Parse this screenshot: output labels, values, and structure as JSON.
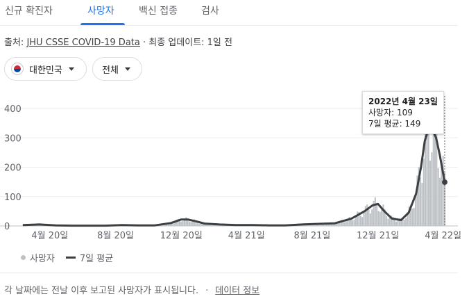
{
  "tabs": [
    "신규 확진자",
    "사망자",
    "백신 접종",
    "검사"
  ],
  "active_tab": "사망자",
  "source": {
    "prefix": "출처: ",
    "link": "JHU CSSE COVID-19 Data",
    "suffix": " · 최종 업데이트: 1일 전"
  },
  "filters": {
    "region": "대한민국",
    "range": "전체"
  },
  "tooltip": {
    "date": "2022년 4월 23일",
    "deaths": "사망자: 109",
    "avg": "7일 평균: 149"
  },
  "legend": {
    "bars": "사망자",
    "line": "7일 평균"
  },
  "footer": {
    "note": "각 날짜에는 전날 이후 보고된 사망자가 표시됩니다.",
    "sep": "·",
    "link": "데이터 정보"
  },
  "colors": {
    "accent": "#1a73e8",
    "bars": "#bdc1c6",
    "line": "#3c4043"
  },
  "chart_data": {
    "type": "area",
    "y_ticks": [
      0,
      100,
      200,
      300,
      400
    ],
    "ylim": [
      0,
      400
    ],
    "x_ticks": [
      "4월 20일",
      "8월 20일",
      "12월 20일",
      "4월 21일",
      "8월 21일",
      "12월 21일",
      "4월 22일"
    ],
    "grid": true,
    "series": [
      {
        "name": "7일 평균",
        "points": [
          [
            "2020-03-01",
            3
          ],
          [
            "2020-04-01",
            5
          ],
          [
            "2020-05-01",
            2
          ],
          [
            "2020-06-01",
            1
          ],
          [
            "2020-07-01",
            1
          ],
          [
            "2020-08-01",
            1
          ],
          [
            "2020-09-01",
            3
          ],
          [
            "2020-10-01",
            2
          ],
          [
            "2020-11-01",
            2
          ],
          [
            "2020-12-01",
            10
          ],
          [
            "2020-12-20",
            22
          ],
          [
            "2021-01-01",
            22
          ],
          [
            "2021-01-20",
            14
          ],
          [
            "2021-02-01",
            8
          ],
          [
            "2021-03-01",
            5
          ],
          [
            "2021-04-01",
            3
          ],
          [
            "2021-05-01",
            3
          ],
          [
            "2021-06-01",
            2
          ],
          [
            "2021-07-01",
            2
          ],
          [
            "2021-08-01",
            5
          ],
          [
            "2021-09-01",
            7
          ],
          [
            "2021-10-01",
            9
          ],
          [
            "2021-11-01",
            25
          ],
          [
            "2021-11-25",
            50
          ],
          [
            "2021-12-10",
            70
          ],
          [
            "2021-12-20",
            75
          ],
          [
            "2022-01-01",
            50
          ],
          [
            "2022-01-15",
            25
          ],
          [
            "2022-02-01",
            20
          ],
          [
            "2022-02-15",
            45
          ],
          [
            "2022-03-01",
            110
          ],
          [
            "2022-03-10",
            200
          ],
          [
            "2022-03-17",
            290
          ],
          [
            "2022-03-24",
            330
          ],
          [
            "2022-03-31",
            330
          ],
          [
            "2022-04-07",
            300
          ],
          [
            "2022-04-14",
            240
          ],
          [
            "2022-04-23",
            149
          ]
        ]
      }
    ]
  }
}
